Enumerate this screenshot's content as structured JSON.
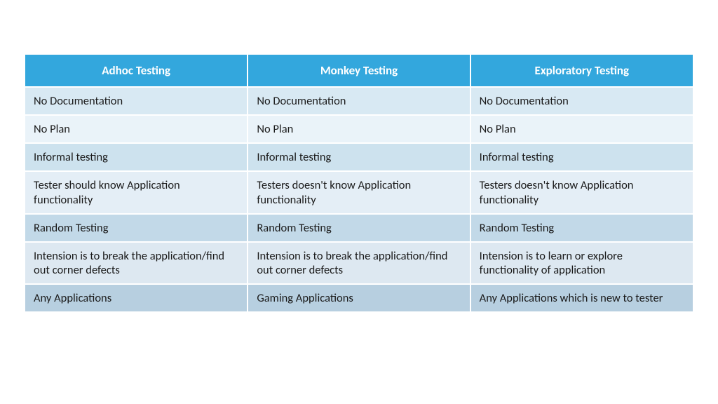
{
  "table": {
    "header_bg": "#33a7dd",
    "header_color": "#ffffff",
    "row_colors": [
      "#d8e9f3",
      "#eaf3f9",
      "#cde2ee",
      "#e4eef6",
      "#c2d9e8",
      "#dde8f1",
      "#b7cfe0"
    ],
    "cell_text_color": "#1a1a1a",
    "columns": [
      "Adhoc Testing",
      "Monkey Testing",
      "Exploratory Testing"
    ],
    "rows": [
      [
        "No Documentation",
        "No Documentation",
        "No Documentation"
      ],
      [
        "No Plan",
        "No Plan",
        "No Plan"
      ],
      [
        "Informal testing",
        "Informal testing",
        "Informal testing"
      ],
      [
        "Tester should know Application functionality",
        "Testers doesn't know Application functionality",
        "Testers doesn't know Application functionality"
      ],
      [
        "Random Testing",
        "Random Testing",
        "Random Testing"
      ],
      [
        "Intension is to break the application/find out corner defects",
        "Intension is to break the application/find out corner defects",
        "Intension is to learn or explore functionality of application"
      ],
      [
        "Any Applications",
        "Gaming Applications",
        "Any Applications which is new to tester"
      ]
    ]
  }
}
